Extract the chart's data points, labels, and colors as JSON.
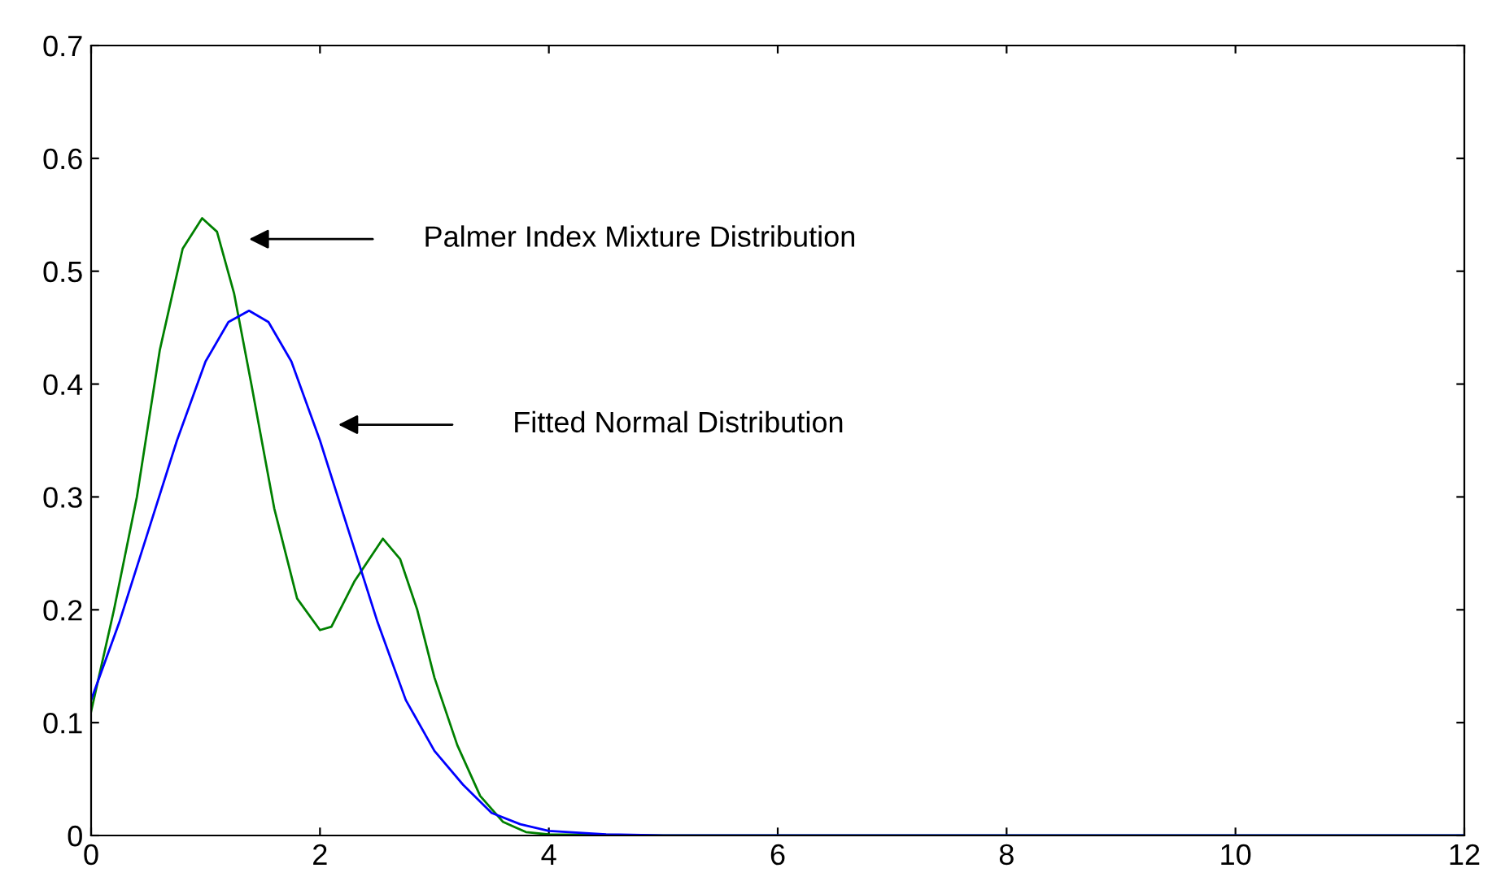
{
  "chart_data": {
    "type": "line",
    "xlim": [
      0,
      12
    ],
    "ylim": [
      0,
      0.7
    ],
    "xticks": [
      0,
      2,
      4,
      6,
      8,
      10,
      12
    ],
    "yticks": [
      0,
      0.1,
      0.2,
      0.3,
      0.4,
      0.5,
      0.6,
      0.7
    ],
    "grid": false,
    "legend": false,
    "marker": "none",
    "line_style": "solid",
    "series": [
      {
        "color": "#008000",
        "x": [
          0,
          0.2,
          0.4,
          0.6,
          0.8,
          0.97,
          1.1,
          1.25,
          1.4,
          1.6,
          1.8,
          2.0,
          2.1,
          2.3,
          2.55,
          2.7,
          2.85,
          3.0,
          3.2,
          3.4,
          3.6,
          3.8,
          4.0,
          5,
          12
        ],
        "values": [
          0.11,
          0.2,
          0.3,
          0.43,
          0.52,
          0.547,
          0.535,
          0.48,
          0.4,
          0.29,
          0.21,
          0.182,
          0.185,
          0.225,
          0.263,
          0.245,
          0.2,
          0.14,
          0.08,
          0.035,
          0.012,
          0.003,
          0.001,
          0,
          0
        ]
      },
      {
        "color": "#0000ff",
        "x": [
          0,
          0.25,
          0.5,
          0.75,
          1.0,
          1.2,
          1.38,
          1.55,
          1.75,
          2.0,
          2.25,
          2.5,
          2.75,
          3.0,
          3.25,
          3.5,
          3.75,
          4.0,
          4.5,
          5,
          12
        ],
        "values": [
          0.12,
          0.19,
          0.27,
          0.35,
          0.42,
          0.455,
          0.465,
          0.455,
          0.42,
          0.35,
          0.27,
          0.19,
          0.12,
          0.075,
          0.045,
          0.02,
          0.01,
          0.004,
          0.001,
          0,
          0
        ]
      }
    ],
    "annotations": [
      "Palmer Index Mixture Distribution",
      "Fitted Normal Distribution"
    ]
  }
}
